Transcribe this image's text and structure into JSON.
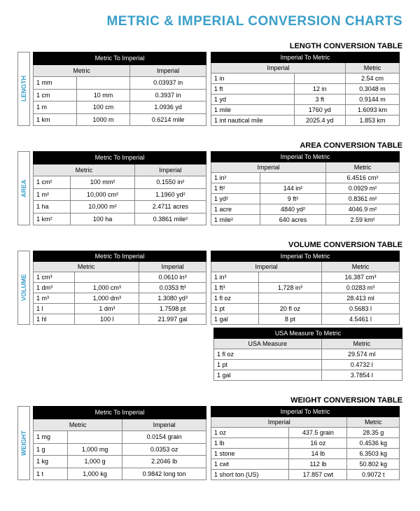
{
  "page_title": "METRIC & IMPERIAL CONVERSION CHARTS",
  "colors": {
    "accent": "#3a9fc9",
    "header_bg": "#000000",
    "header_fg": "#ffffff",
    "subheader_bg": "#e6e6e6",
    "border": "#888888",
    "bg": "#ffffff"
  },
  "sections": [
    {
      "key": "length",
      "label": "LENGTH",
      "title": "LENGTH CONVERSION TABLE",
      "left": {
        "top": "Metric To Imperial",
        "cols": [
          "Metric",
          "Imperial"
        ],
        "col_spans": [
          2,
          1
        ],
        "rows": [
          [
            "1 mm",
            "",
            "0.03937 in"
          ],
          [
            "1 cm",
            "10 mm",
            "0.3937 in"
          ],
          [
            "1 m",
            "100 cm",
            "1.0936 yd"
          ],
          [
            "1 km",
            "1000 m",
            "0.6214 mile"
          ]
        ]
      },
      "right": {
        "top": "Imperial To Metric",
        "cols": [
          "Imperial",
          "Metric"
        ],
        "col_spans": [
          2,
          1
        ],
        "rows": [
          [
            "1 in",
            "",
            "2.54 cm"
          ],
          [
            "1 ft",
            "12 in",
            "0.3048 m"
          ],
          [
            "1 yd",
            "3 ft",
            "0.9144 m"
          ],
          [
            "1 mile",
            "1760 yd",
            "1.6093 km"
          ],
          [
            "1 int nautical mile",
            "2025.4 yd",
            "1.853 km"
          ]
        ]
      }
    },
    {
      "key": "area",
      "label": "AREA",
      "title": "AREA CONVERSION TABLE",
      "left": {
        "top": "Metric To Imperial",
        "cols": [
          "Metric",
          "Imperial"
        ],
        "col_spans": [
          2,
          1
        ],
        "rows": [
          [
            "1 cm²",
            "100 mm²",
            "0.1550 in²"
          ],
          [
            "1 m²",
            "10,000 cm²",
            "1.1960 yd²"
          ],
          [
            "1 ha",
            "10,000 m²",
            "2.4711 acres"
          ],
          [
            "1 km²",
            "100 ha",
            "0.3861 mile²"
          ]
        ]
      },
      "right": {
        "top": "Imperial To Metric",
        "cols": [
          "Imperial",
          "Metric"
        ],
        "col_spans": [
          2,
          1
        ],
        "rows": [
          [
            "1 in²",
            "",
            "6.4516 cm²"
          ],
          [
            "1 ft²",
            "144 in²",
            "0.0929 m²"
          ],
          [
            "1 yd²",
            "9 ft²",
            "0.8361 m²"
          ],
          [
            "1 acre",
            "4840 yd²",
            "4046.9 m²"
          ],
          [
            "1 mile²",
            "640 acres",
            "2.59 km²"
          ]
        ]
      }
    },
    {
      "key": "volume",
      "label": "VOLUME",
      "title": "VOLUME CONVERSION TABLE",
      "left": {
        "top": "Metric To Imperial",
        "cols": [
          "Metric",
          "Imperial"
        ],
        "col_spans": [
          2,
          1
        ],
        "rows": [
          [
            "1 cm³",
            "",
            "0.0610 in³"
          ],
          [
            "1 dm³",
            "1,000 cm³",
            "0.0353 ft³"
          ],
          [
            "1 m³",
            "1,000 dm³",
            "1.3080 yd³"
          ],
          [
            "1 l",
            "1 dm³",
            "1.7598 pt"
          ],
          [
            "1 hl",
            "100 l",
            "21.997 gal"
          ]
        ]
      },
      "right": {
        "top": "Imperial To Metric",
        "cols": [
          "Imperial",
          "Metric"
        ],
        "col_spans": [
          2,
          1
        ],
        "rows": [
          [
            "1 in³",
            "",
            "16.387 cm³"
          ],
          [
            "1 ft³",
            "1,728 in³",
            "0.0283 m³"
          ],
          [
            "1 fl oz",
            "",
            "28.413 ml"
          ],
          [
            "1 pt",
            "20 fl oz",
            "0.5683 l"
          ],
          [
            "1 gal",
            "8 pt",
            "4.5461 l"
          ]
        ]
      },
      "extra": {
        "top": "USA Measure To Metric",
        "cols": [
          "USA Measure",
          "Metric"
        ],
        "col_spans": [
          1,
          1
        ],
        "rows": [
          [
            "1 fl oz",
            "29.574 ml"
          ],
          [
            "1 pt",
            "0.4732 l"
          ],
          [
            "1 gal",
            "3.7854 l"
          ]
        ]
      }
    },
    {
      "key": "weight",
      "label": "WEIGHT",
      "title": "WEIGHT CONVERSION TABLE",
      "left": {
        "top": "Metric To Imperial",
        "cols": [
          "Metric",
          "Imperial"
        ],
        "col_spans": [
          2,
          1
        ],
        "rows": [
          [
            "1 mg",
            "",
            "0.0154 grain"
          ],
          [
            "1 g",
            "1,000 mg",
            "0.0353 oz"
          ],
          [
            "1 kg",
            "1,000 g",
            "2.2046 lb"
          ],
          [
            "1 t",
            "1,000 kg",
            "0.9842 long ton"
          ]
        ]
      },
      "right": {
        "top": "Imperial To Metric",
        "cols": [
          "Imperial",
          "Metric"
        ],
        "col_spans": [
          2,
          1
        ],
        "rows": [
          [
            "1 oz",
            "437.5 grain",
            "28.35 g"
          ],
          [
            "1 lb",
            "16 oz",
            "0.4536 kg"
          ],
          [
            "1 stone",
            "14 lb",
            "6.3503 kg"
          ],
          [
            "1 cwt",
            "112 lb",
            "50.802 kg"
          ],
          [
            "1 short ton (US)",
            "17.857 cwt",
            "0.9072 t"
          ]
        ]
      }
    }
  ]
}
